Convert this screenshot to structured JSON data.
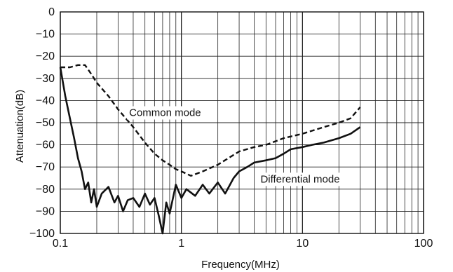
{
  "chart_data": {
    "type": "line",
    "xscale": "log",
    "xlim": [
      0.1,
      100
    ],
    "ylim": [
      -100,
      0
    ],
    "xlabel": "Frequency(MHz)",
    "ylabel": "Attenuation(dB)",
    "xticks": [
      0.1,
      1,
      10,
      100
    ],
    "xtick_labels": [
      "0.1",
      "1",
      "10",
      "100"
    ],
    "yticks": [
      0,
      -10,
      -20,
      -30,
      -40,
      -50,
      -60,
      -70,
      -80,
      -90,
      -100
    ],
    "ytick_labels": [
      "0",
      "−10",
      "−20",
      "−30",
      "−40",
      "−50",
      "−60",
      "−70",
      "−80",
      "−90",
      "−100"
    ],
    "grid": true,
    "annotations": [
      {
        "text": "Common mode",
        "x": 0.37,
        "y": -47
      },
      {
        "text": "Differential mode",
        "x": 4.5,
        "y": -77
      }
    ],
    "series": [
      {
        "style": "dashed",
        "x": [
          0.1,
          0.12,
          0.14,
          0.15,
          0.16,
          0.18,
          0.2,
          0.25,
          0.3,
          0.4,
          0.5,
          0.6,
          0.7,
          0.8,
          0.9,
          1.0,
          1.2,
          1.5,
          2,
          3,
          4,
          5,
          7,
          10,
          15,
          20,
          25,
          30
        ],
        "y": [
          -25,
          -25,
          -24,
          -24,
          -24,
          -28,
          -32,
          -38,
          -44,
          -52,
          -59,
          -64,
          -67,
          -69,
          -71,
          -72,
          -74,
          -72,
          -69,
          -63,
          -61,
          -60,
          -57,
          -55,
          -52,
          -50,
          -48,
          -43
        ]
      },
      {
        "style": "solid",
        "x": [
          0.1,
          0.11,
          0.12,
          0.13,
          0.14,
          0.15,
          0.16,
          0.17,
          0.18,
          0.19,
          0.2,
          0.22,
          0.25,
          0.28,
          0.3,
          0.33,
          0.36,
          0.4,
          0.45,
          0.5,
          0.55,
          0.6,
          0.65,
          0.7,
          0.75,
          0.8,
          0.9,
          1.0,
          1.1,
          1.3,
          1.5,
          1.7,
          2,
          2.3,
          2.7,
          3,
          3.5,
          4,
          5,
          6,
          7,
          8,
          10,
          12,
          15,
          20,
          25,
          30
        ],
        "y": [
          -25,
          -38,
          -48,
          -57,
          -66,
          -72,
          -80,
          -77,
          -86,
          -80,
          -88,
          -82,
          -79,
          -86,
          -83,
          -90,
          -85,
          -84,
          -88,
          -82,
          -87,
          -84,
          -92,
          -100,
          -86,
          -91,
          -78,
          -84,
          -80,
          -83,
          -78,
          -82,
          -77,
          -82,
          -75,
          -72,
          -70,
          -68,
          -67,
          -66,
          -64,
          -62,
          -61,
          -60,
          -59,
          -57,
          -55,
          -52
        ]
      }
    ]
  }
}
